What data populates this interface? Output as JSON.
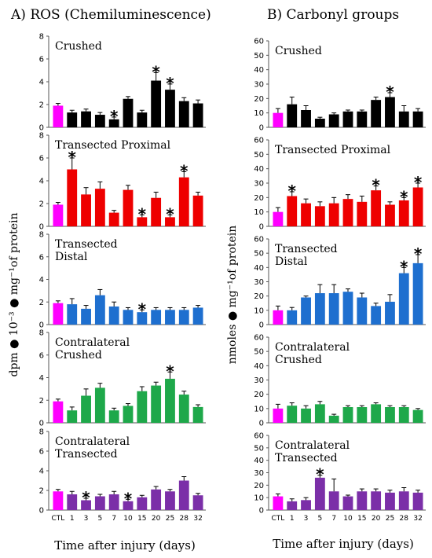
{
  "figure": {
    "left_title": "A) ROS (Chemiluminescence)",
    "right_title": "B) Carbonyl groups",
    "left_ylabel": "dpm ● 10⁻³ ● mg⁻¹of protein",
    "right_ylabel": "nmoles ● mg⁻¹of protein",
    "left_xlabel": "Time after injury (days)",
    "right_xlabel": "Time after injury (days)"
  },
  "chart_data": [
    {
      "type": "bar",
      "column": "A",
      "title": [
        "Crushed"
      ],
      "color": "#000000",
      "categories": [
        "CTL",
        "1",
        "3",
        "5",
        "7",
        "10",
        "15",
        "20",
        "25",
        "28",
        "32"
      ],
      "values": [
        1.9,
        1.3,
        1.4,
        1.1,
        0.7,
        2.5,
        1.3,
        4.1,
        3.3,
        2.3,
        2.1
      ],
      "errors": [
        0.2,
        0.2,
        0.2,
        0.2,
        0.2,
        0.2,
        0.2,
        0.7,
        0.5,
        0.3,
        0.3
      ],
      "significant": [
        false,
        false,
        false,
        false,
        true,
        false,
        false,
        true,
        true,
        false,
        false
      ],
      "ylim": [
        0,
        8
      ],
      "yticks": [
        0,
        2,
        4,
        6,
        8
      ],
      "show_xticks": false
    },
    {
      "type": "bar",
      "column": "A",
      "title": [
        "Transected Proximal"
      ],
      "color": "#ee0000",
      "categories": [
        "CTL",
        "1",
        "3",
        "5",
        "7",
        "10",
        "15",
        "20",
        "25",
        "28",
        "32"
      ],
      "values": [
        1.9,
        5.0,
        2.8,
        3.3,
        1.2,
        3.2,
        0.8,
        2.5,
        0.8,
        4.3,
        2.7
      ],
      "errors": [
        0.2,
        1.0,
        0.6,
        0.6,
        0.2,
        0.4,
        0.2,
        0.5,
        0.2,
        0.5,
        0.3
      ],
      "significant": [
        false,
        true,
        false,
        false,
        false,
        false,
        true,
        false,
        true,
        true,
        false
      ],
      "ylim": [
        0,
        8
      ],
      "yticks": [
        0,
        2,
        4,
        6,
        8
      ],
      "show_xticks": false
    },
    {
      "type": "bar",
      "column": "A",
      "title": [
        "Transected",
        "Distal"
      ],
      "color": "#1e6fcf",
      "categories": [
        "CTL",
        "1",
        "3",
        "5",
        "7",
        "10",
        "15",
        "20",
        "25",
        "28",
        "32"
      ],
      "values": [
        1.9,
        1.8,
        1.4,
        2.6,
        1.6,
        1.3,
        1.1,
        1.3,
        1.3,
        1.3,
        1.5
      ],
      "errors": [
        0.2,
        0.5,
        0.3,
        0.5,
        0.4,
        0.2,
        0.2,
        0.2,
        0.2,
        0.2,
        0.2
      ],
      "significant": [
        false,
        false,
        false,
        false,
        false,
        false,
        true,
        false,
        false,
        false,
        false
      ],
      "ylim": [
        0,
        8
      ],
      "yticks": [
        0,
        2,
        4,
        6,
        8
      ],
      "show_xticks": false
    },
    {
      "type": "bar",
      "column": "A",
      "title": [
        "Contralateral",
        "Crushed"
      ],
      "color": "#1ea84a",
      "categories": [
        "CTL",
        "1",
        "3",
        "5",
        "7",
        "10",
        "15",
        "20",
        "25",
        "28",
        "32"
      ],
      "values": [
        1.9,
        1.1,
        2.4,
        3.1,
        1.1,
        1.5,
        2.8,
        3.3,
        3.9,
        2.5,
        1.4
      ],
      "errors": [
        0.2,
        0.3,
        0.6,
        0.4,
        0.2,
        0.2,
        0.4,
        0.3,
        0.6,
        0.3,
        0.2
      ],
      "significant": [
        false,
        false,
        false,
        false,
        false,
        false,
        false,
        false,
        true,
        false,
        false
      ],
      "ylim": [
        0,
        8
      ],
      "yticks": [
        0,
        2,
        4,
        6,
        8
      ],
      "show_xticks": false
    },
    {
      "type": "bar",
      "column": "A",
      "title": [
        "Contralateral",
        "Transected"
      ],
      "color": "#7b2fa8",
      "categories": [
        "CTL",
        "1",
        "3",
        "5",
        "7",
        "10",
        "15",
        "20",
        "25",
        "28",
        "32"
      ],
      "values": [
        1.9,
        1.6,
        1.0,
        1.4,
        1.6,
        0.9,
        1.3,
        2.1,
        1.9,
        3.0,
        1.5
      ],
      "errors": [
        0.2,
        0.3,
        0.2,
        0.2,
        0.3,
        0.2,
        0.2,
        0.3,
        0.2,
        0.4,
        0.2
      ],
      "significant": [
        false,
        false,
        true,
        false,
        false,
        true,
        false,
        false,
        false,
        false,
        false
      ],
      "ylim": [
        0,
        8
      ],
      "yticks": [
        0,
        2,
        4,
        6,
        8
      ],
      "show_xticks": true
    },
    {
      "type": "bar",
      "column": "B",
      "title": [
        "Crushed"
      ],
      "color": "#000000",
      "categories": [
        "CTL",
        "1",
        "3",
        "5",
        "7",
        "10",
        "15",
        "20",
        "25",
        "28",
        "32"
      ],
      "values": [
        10,
        16,
        12,
        6,
        9,
        11,
        11,
        19,
        21,
        11,
        11
      ],
      "errors": [
        3,
        5,
        3,
        1,
        1,
        1,
        1,
        2,
        3,
        4,
        2
      ],
      "significant": [
        false,
        false,
        false,
        false,
        false,
        false,
        false,
        false,
        true,
        false,
        false
      ],
      "ylim": [
        0,
        60
      ],
      "yticks": [
        0,
        10,
        20,
        30,
        40,
        50,
        60
      ],
      "show_xticks": false
    },
    {
      "type": "bar",
      "column": "B",
      "title": [
        "Transected Proximal"
      ],
      "color": "#ee0000",
      "categories": [
        "CTL",
        "1",
        "3",
        "5",
        "7",
        "10",
        "15",
        "20",
        "25",
        "28",
        "32"
      ],
      "values": [
        10,
        21,
        16,
        14,
        16,
        19,
        17,
        25,
        15,
        18,
        27
      ],
      "errors": [
        3,
        3,
        3,
        3,
        4,
        3,
        4,
        3,
        2,
        2,
        3
      ],
      "significant": [
        false,
        true,
        false,
        false,
        false,
        false,
        false,
        true,
        false,
        true,
        true
      ],
      "ylim": [
        0,
        60
      ],
      "yticks": [
        0,
        10,
        20,
        30,
        40,
        50,
        60
      ],
      "show_xticks": false
    },
    {
      "type": "bar",
      "column": "B",
      "title": [
        "Transected",
        "Distal"
      ],
      "color": "#1e6fcf",
      "categories": [
        "CTL",
        "1",
        "3",
        "5",
        "7",
        "10",
        "15",
        "20",
        "25",
        "28",
        "32"
      ],
      "values": [
        10,
        10,
        19,
        22,
        22,
        23,
        19,
        13,
        16,
        36,
        43
      ],
      "errors": [
        3,
        2,
        1,
        6,
        6,
        2,
        3,
        2,
        5,
        4,
        6
      ],
      "significant": [
        false,
        false,
        false,
        false,
        false,
        false,
        false,
        false,
        false,
        true,
        true
      ],
      "ylim": [
        0,
        60
      ],
      "yticks": [
        0,
        10,
        20,
        30,
        40,
        50,
        60
      ],
      "show_xticks": false
    },
    {
      "type": "bar",
      "column": "B",
      "title": [
        "Contralateral",
        "Crushed"
      ],
      "color": "#1ea84a",
      "categories": [
        "CTL",
        "1",
        "3",
        "5",
        "7",
        "10",
        "15",
        "20",
        "25",
        "28",
        "32"
      ],
      "values": [
        10,
        12,
        10,
        13,
        5,
        11,
        11,
        13,
        11,
        11,
        9
      ],
      "errors": [
        3,
        2,
        2,
        2,
        1,
        1,
        1,
        1,
        1,
        1,
        1
      ],
      "significant": [
        false,
        false,
        false,
        false,
        false,
        false,
        false,
        false,
        false,
        false,
        false
      ],
      "ylim": [
        0,
        60
      ],
      "yticks": [
        0,
        10,
        20,
        30,
        40,
        50,
        60
      ],
      "show_xticks": false
    },
    {
      "type": "bar",
      "column": "B",
      "title": [
        "Contralateral",
        "Transected"
      ],
      "color": "#7b2fa8",
      "categories": [
        "CTL",
        "1",
        "3",
        "5",
        "7",
        "10",
        "15",
        "20",
        "25",
        "28",
        "32"
      ],
      "values": [
        11,
        7,
        8,
        26,
        15,
        11,
        15,
        15,
        14,
        15,
        14
      ],
      "errors": [
        2,
        2,
        2,
        2,
        10,
        1,
        2,
        2,
        2,
        3,
        2
      ],
      "significant": [
        false,
        false,
        false,
        true,
        false,
        false,
        false,
        false,
        false,
        false,
        false
      ],
      "ylim": [
        0,
        60
      ],
      "yticks": [
        0,
        10,
        20,
        30,
        40,
        50,
        60
      ],
      "show_xticks": true
    }
  ],
  "colors": {
    "control": "#ff00ff"
  },
  "star_symbol": "*"
}
